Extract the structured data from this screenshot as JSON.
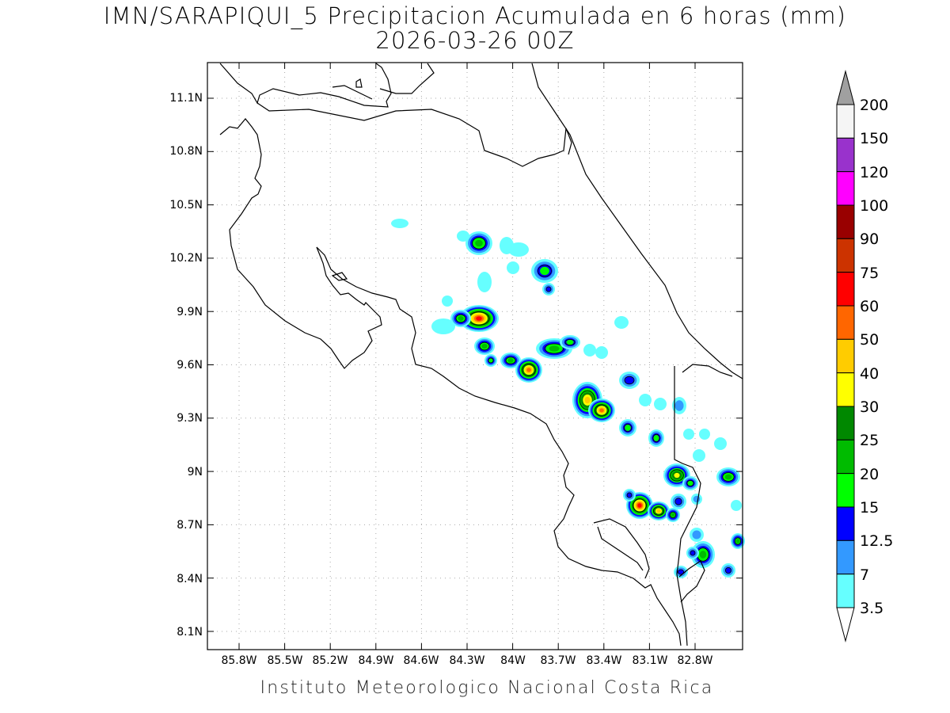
{
  "title": {
    "line1": "IMN/SARAPIQUI_5 Precipitacion Acumulada en 6 horas (mm)",
    "line2": "2026-03-26 00Z"
  },
  "footer": "Instituto Meteorologico Nacional Costa Rica",
  "map": {
    "lon_range": [
      -86.0,
      -82.55
    ],
    "lat_range": [
      8.0,
      11.3
    ],
    "lon_ticks": [
      "85.8W",
      "85.5W",
      "85.2W",
      "84.9W",
      "84.6W",
      "84.3W",
      "84W",
      "83.7W",
      "83.4W",
      "83.1W",
      "82.8W"
    ],
    "lat_ticks": [
      "8.1N",
      "8.4N",
      "8.7N",
      "9N",
      "9.3N",
      "9.6N",
      "9.9N",
      "10.2N",
      "10.5N",
      "10.8N",
      "11.1N"
    ],
    "grid": "dotted"
  },
  "colorbar": {
    "labels": [
      "200",
      "150",
      "120",
      "100",
      "90",
      "75",
      "60",
      "50",
      "40",
      "30",
      "25",
      "20",
      "15",
      "12.5",
      "7",
      "3.5"
    ],
    "colors": [
      "#f5f5f5",
      "#9932cc",
      "#ff00ff",
      "#990000",
      "#cc3300",
      "#ff0000",
      "#ff6600",
      "#ffcc00",
      "#ffff00",
      "#008800",
      "#00bb00",
      "#00ff00",
      "#0000ff",
      "#3399ff",
      "#66ffff"
    ],
    "max_arrow_color": "#a0a0a0",
    "min_arrow_color": "#ffffff"
  }
}
